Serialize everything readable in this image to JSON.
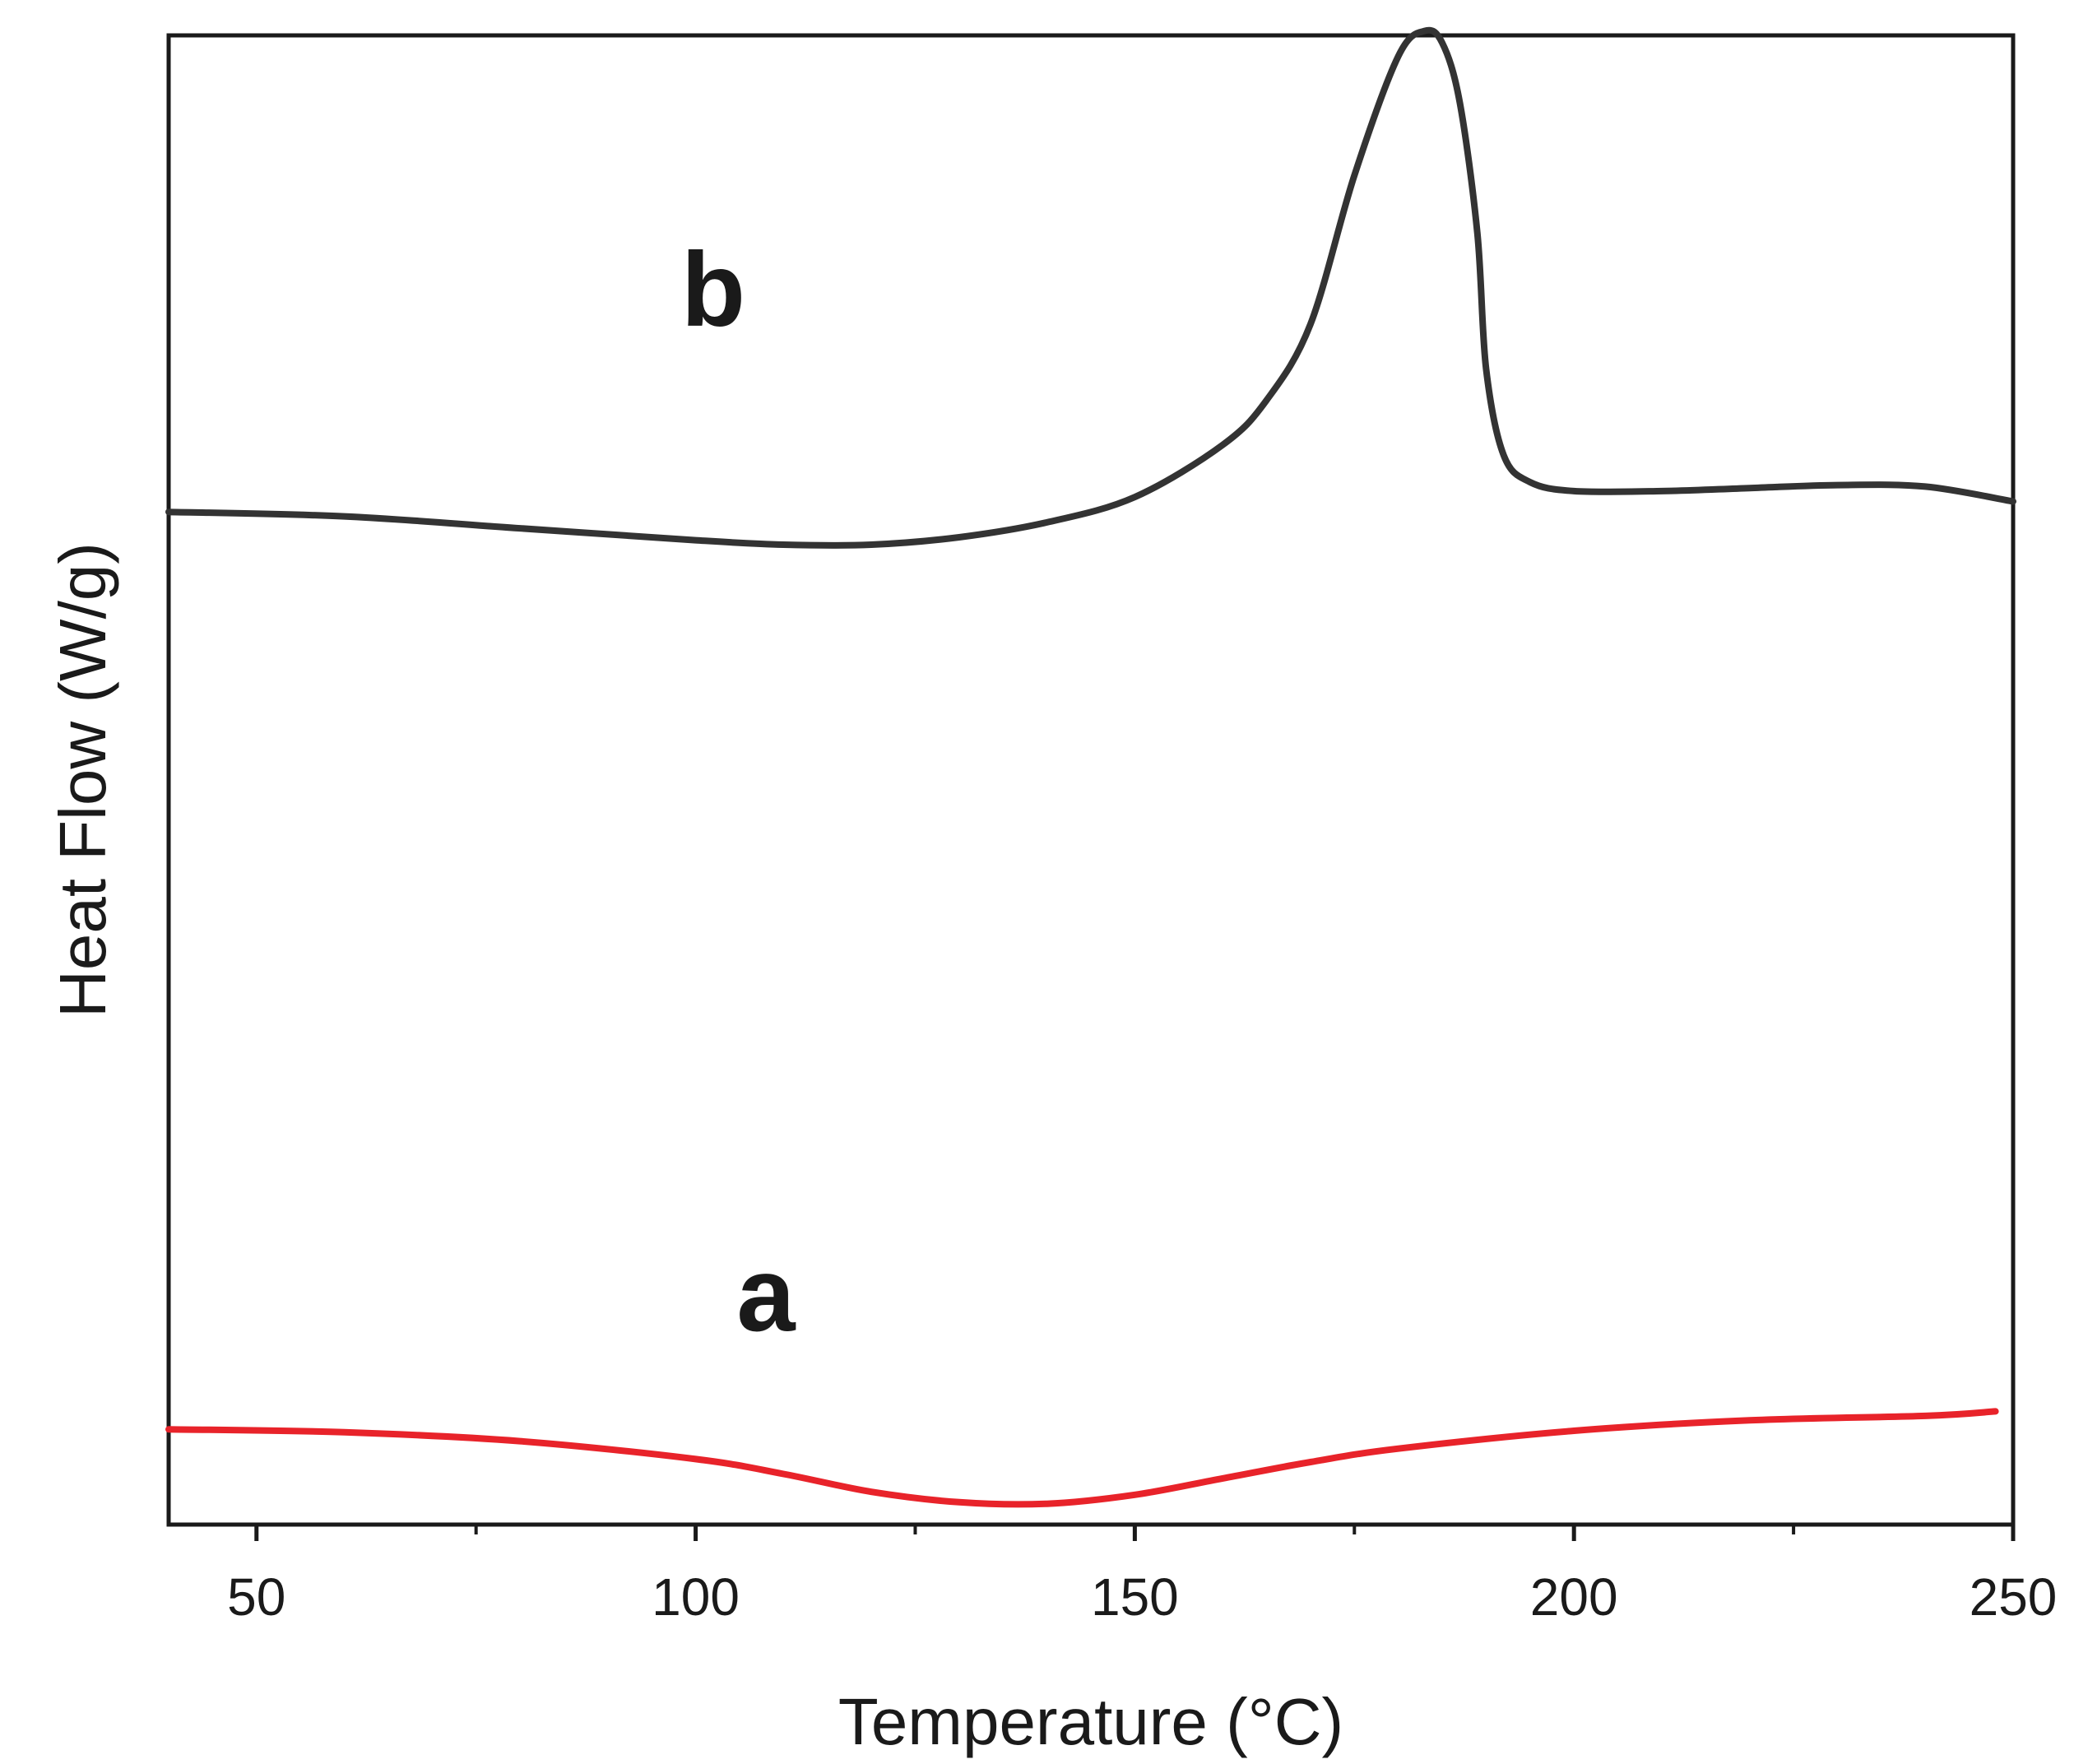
{
  "chart_data": {
    "type": "line",
    "title": "",
    "xlabel": "Temperature (°C)",
    "ylabel": "Heat Flow (W/g)",
    "xlim": [
      40,
      250
    ],
    "ylim": [
      0,
      100
    ],
    "x_major_ticks": [
      50,
      100,
      150,
      200,
      250
    ],
    "x_minor_ticks": [
      75,
      125,
      175,
      225
    ],
    "y_ticks_shown": false,
    "grid": false,
    "axis_color": "#1a1a1a",
    "series": [
      {
        "name": "a",
        "color": "#e8232a",
        "label_at": [
          108,
          13
        ],
        "x": [
          40,
          60,
          80,
          100,
          110,
          120,
          130,
          140,
          150,
          160,
          170,
          180,
          200,
          220,
          240,
          248
        ],
        "y": [
          6.4,
          6.2,
          5.6,
          4.4,
          3.4,
          2.2,
          1.5,
          1.4,
          2.0,
          3.1,
          4.2,
          5.1,
          6.3,
          7.0,
          7.3,
          7.6
        ]
      },
      {
        "name": "b",
        "color": "#333333",
        "label_at": [
          102,
          80.5
        ],
        "x": [
          40,
          60,
          80,
          100,
          110,
          120,
          130,
          140,
          150,
          160,
          165,
          170,
          175,
          180,
          183,
          185,
          187,
          189,
          190,
          192,
          195,
          200,
          210,
          220,
          230,
          240,
          250
        ],
        "y": [
          68.0,
          67.7,
          66.9,
          66.1,
          65.8,
          65.8,
          66.3,
          67.3,
          69.0,
          72.5,
          75.5,
          80.6,
          90.6,
          98.6,
          100.3,
          99.5,
          95.5,
          86.7,
          77.6,
          71.8,
          70.0,
          69.4,
          69.4,
          69.6,
          69.8,
          69.7,
          68.7
        ]
      }
    ]
  }
}
